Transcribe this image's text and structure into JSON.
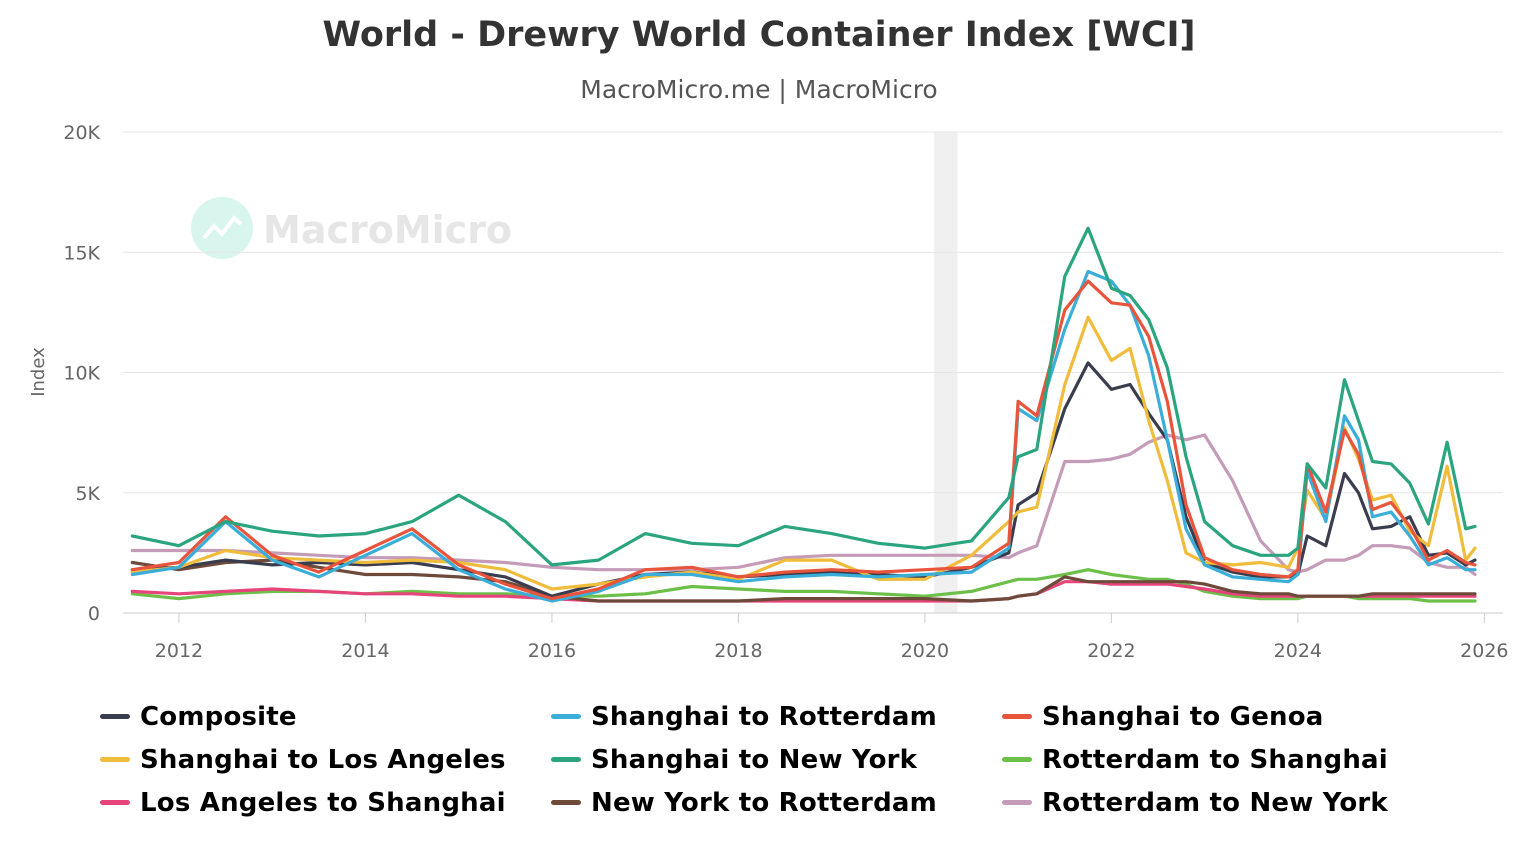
{
  "chart_data": {
    "type": "line",
    "title": "World - Drewry World Container Index [WCI]",
    "subtitle": "MacroMicro.me | MacroMicro",
    "watermark": "MacroMicro",
    "ylabel": "Index",
    "xlabel": "",
    "ylim": [
      0,
      20000
    ],
    "xlim": [
      2011.4,
      2026.2
    ],
    "yticks": [
      0,
      5000,
      10000,
      15000,
      20000
    ],
    "ytick_labels": [
      "0",
      "5K",
      "10K",
      "15K",
      "20K"
    ],
    "xticks": [
      2012,
      2014,
      2016,
      2018,
      2020,
      2022,
      2024,
      2026
    ],
    "xtick_labels": [
      "2012",
      "2014",
      "2016",
      "2018",
      "2020",
      "2022",
      "2024",
      "2026"
    ],
    "shaded_range": [
      2020.1,
      2020.35
    ],
    "grid": true,
    "legend_position": "bottom",
    "series": [
      {
        "name": "Composite",
        "color": "#3a3d4d",
        "x": [
          2011.5,
          2012.0,
          2012.5,
          2013.0,
          2013.5,
          2014.0,
          2014.5,
          2015.0,
          2015.5,
          2016.0,
          2016.5,
          2017.0,
          2017.5,
          2018.0,
          2018.5,
          2019.0,
          2019.5,
          2020.0,
          2020.5,
          2020.9,
          2021.0,
          2021.2,
          2021.5,
          2021.75,
          2022.0,
          2022.2,
          2022.4,
          2022.6,
          2022.8,
          2023.0,
          2023.3,
          2023.6,
          2023.9,
          2024.0,
          2024.1,
          2024.3,
          2024.5,
          2024.65,
          2024.8,
          2025.0,
          2025.2,
          2025.4,
          2025.6,
          2025.8,
          2025.9
        ],
        "values": [
          1800,
          1900,
          2200,
          2000,
          2100,
          2000,
          2100,
          1800,
          1500,
          700,
          1200,
          1600,
          1700,
          1500,
          1600,
          1700,
          1600,
          1500,
          1900,
          2500,
          4500,
          5000,
          8500,
          10400,
          9300,
          9500,
          8300,
          7200,
          4000,
          2100,
          1700,
          1500,
          1500,
          1600,
          3200,
          2800,
          5800,
          5000,
          3500,
          3600,
          4000,
          2400,
          2500,
          2000,
          2200
        ]
      },
      {
        "name": "Shanghai to Rotterdam",
        "color": "#3aaed8",
        "x": [
          2011.5,
          2012.0,
          2012.5,
          2013.0,
          2013.5,
          2014.0,
          2014.5,
          2015.0,
          2015.5,
          2016.0,
          2016.5,
          2017.0,
          2017.5,
          2018.0,
          2018.5,
          2019.0,
          2019.5,
          2020.0,
          2020.5,
          2020.9,
          2021.0,
          2021.2,
          2021.5,
          2021.75,
          2022.0,
          2022.2,
          2022.4,
          2022.6,
          2022.8,
          2023.0,
          2023.3,
          2023.6,
          2023.9,
          2024.0,
          2024.1,
          2024.3,
          2024.5,
          2024.65,
          2024.8,
          2025.0,
          2025.2,
          2025.4,
          2025.6,
          2025.8,
          2025.9
        ],
        "values": [
          1600,
          1900,
          3800,
          2200,
          1500,
          2400,
          3300,
          1800,
          1000,
          500,
          900,
          1600,
          1600,
          1300,
          1500,
          1600,
          1500,
          1600,
          1700,
          2700,
          8500,
          8000,
          11800,
          14200,
          13800,
          12800,
          10700,
          7200,
          3500,
          2000,
          1500,
          1400,
          1300,
          1600,
          5900,
          3800,
          8200,
          7200,
          4000,
          4200,
          3200,
          2000,
          2300,
          1800,
          1800
        ]
      },
      {
        "name": "Shanghai to Genoa",
        "color": "#e8543c",
        "x": [
          2011.5,
          2012.0,
          2012.5,
          2013.0,
          2013.5,
          2014.0,
          2014.5,
          2015.0,
          2015.5,
          2016.0,
          2016.5,
          2017.0,
          2017.5,
          2018.0,
          2018.5,
          2019.0,
          2019.5,
          2020.0,
          2020.5,
          2020.9,
          2021.0,
          2021.2,
          2021.5,
          2021.75,
          2022.0,
          2022.2,
          2022.4,
          2022.6,
          2022.8,
          2023.0,
          2023.3,
          2023.6,
          2023.9,
          2024.0,
          2024.1,
          2024.3,
          2024.5,
          2024.65,
          2024.8,
          2025.0,
          2025.2,
          2025.4,
          2025.6,
          2025.8,
          2025.9
        ],
        "values": [
          1800,
          2100,
          4000,
          2400,
          1700,
          2600,
          3500,
          2000,
          1200,
          600,
          1000,
          1800,
          1900,
          1500,
          1700,
          1800,
          1700,
          1800,
          1900,
          2900,
          8800,
          8200,
          12600,
          13800,
          12900,
          12800,
          11500,
          8800,
          4500,
          2300,
          1800,
          1600,
          1500,
          1800,
          6200,
          4200,
          7600,
          6600,
          4300,
          4600,
          3600,
          2200,
          2600,
          2100,
          2000
        ]
      },
      {
        "name": "Shanghai to Los Angeles",
        "color": "#f0bc3c",
        "x": [
          2011.5,
          2012.0,
          2012.5,
          2013.0,
          2013.5,
          2014.0,
          2014.5,
          2015.0,
          2015.5,
          2016.0,
          2016.5,
          2017.0,
          2017.5,
          2018.0,
          2018.5,
          2019.0,
          2019.5,
          2020.0,
          2020.5,
          2020.9,
          2021.0,
          2021.2,
          2021.5,
          2021.75,
          2022.0,
          2022.2,
          2022.4,
          2022.6,
          2022.8,
          2023.0,
          2023.3,
          2023.6,
          2023.9,
          2024.0,
          2024.1,
          2024.3,
          2024.5,
          2024.65,
          2024.8,
          2025.0,
          2025.2,
          2025.4,
          2025.6,
          2025.8,
          2025.9
        ],
        "values": [
          1700,
          1900,
          2600,
          2300,
          2200,
          2100,
          2200,
          2100,
          1800,
          1000,
          1200,
          1500,
          1700,
          1400,
          2200,
          2200,
          1400,
          1400,
          2400,
          3800,
          4200,
          4400,
          9500,
          12300,
          10500,
          11000,
          8000,
          5500,
          2500,
          2100,
          2000,
          2100,
          1900,
          2700,
          5100,
          3900,
          7700,
          6400,
          4700,
          4900,
          3400,
          2800,
          6100,
          2200,
          2700
        ]
      },
      {
        "name": "Shanghai to New York",
        "color": "#2aa57f",
        "x": [
          2011.5,
          2012.0,
          2012.5,
          2013.0,
          2013.5,
          2014.0,
          2014.5,
          2015.0,
          2015.5,
          2016.0,
          2016.5,
          2017.0,
          2017.5,
          2018.0,
          2018.5,
          2019.0,
          2019.5,
          2020.0,
          2020.5,
          2020.9,
          2021.0,
          2021.2,
          2021.5,
          2021.75,
          2022.0,
          2022.2,
          2022.4,
          2022.6,
          2022.8,
          2023.0,
          2023.3,
          2023.6,
          2023.9,
          2024.0,
          2024.1,
          2024.3,
          2024.5,
          2024.65,
          2024.8,
          2025.0,
          2025.2,
          2025.4,
          2025.6,
          2025.8,
          2025.9
        ],
        "values": [
          3200,
          2800,
          3800,
          3400,
          3200,
          3300,
          3800,
          4900,
          3800,
          2000,
          2200,
          3300,
          2900,
          2800,
          3600,
          3300,
          2900,
          2700,
          3000,
          4800,
          6500,
          6800,
          14000,
          16000,
          13500,
          13200,
          12200,
          10200,
          6500,
          3800,
          2800,
          2400,
          2400,
          2700,
          6200,
          5200,
          9700,
          8000,
          6300,
          6200,
          5400,
          3700,
          7100,
          3500,
          3600
        ]
      },
      {
        "name": "Rotterdam to Shanghai",
        "color": "#6cc04a",
        "x": [
          2011.5,
          2012.0,
          2012.5,
          2013.0,
          2013.5,
          2014.0,
          2014.5,
          2015.0,
          2015.5,
          2016.0,
          2016.5,
          2017.0,
          2017.5,
          2018.0,
          2018.5,
          2019.0,
          2019.5,
          2020.0,
          2020.5,
          2020.9,
          2021.0,
          2021.2,
          2021.5,
          2021.75,
          2022.0,
          2022.2,
          2022.4,
          2022.6,
          2022.8,
          2023.0,
          2023.3,
          2023.6,
          2023.9,
          2024.0,
          2024.1,
          2024.3,
          2024.5,
          2024.65,
          2024.8,
          2025.0,
          2025.2,
          2025.4,
          2025.6,
          2025.8,
          2025.9
        ],
        "values": [
          800,
          600,
          800,
          900,
          900,
          800,
          900,
          800,
          800,
          700,
          700,
          800,
          1100,
          1000,
          900,
          900,
          800,
          700,
          900,
          1300,
          1400,
          1400,
          1600,
          1800,
          1600,
          1500,
          1400,
          1400,
          1200,
          900,
          700,
          600,
          600,
          600,
          700,
          700,
          700,
          600,
          600,
          600,
          600,
          500,
          500,
          500,
          500
        ]
      },
      {
        "name": "Los Angeles to Shanghai",
        "color": "#e8447c",
        "x": [
          2011.5,
          2012.0,
          2012.5,
          2013.0,
          2013.5,
          2014.0,
          2014.5,
          2015.0,
          2015.5,
          2016.0,
          2016.5,
          2017.0,
          2017.5,
          2018.0,
          2018.5,
          2019.0,
          2019.5,
          2020.0,
          2020.5,
          2020.9,
          2021.0,
          2021.2,
          2021.5,
          2021.75,
          2022.0,
          2022.2,
          2022.4,
          2022.6,
          2022.8,
          2023.0,
          2023.3,
          2023.6,
          2023.9,
          2024.0,
          2024.1,
          2024.3,
          2024.5,
          2024.65,
          2024.8,
          2025.0,
          2025.2,
          2025.4,
          2025.6,
          2025.8,
          2025.9
        ],
        "values": [
          900,
          800,
          900,
          1000,
          900,
          800,
          800,
          700,
          700,
          600,
          500,
          500,
          500,
          500,
          500,
          500,
          500,
          500,
          500,
          600,
          700,
          800,
          1300,
          1300,
          1200,
          1200,
          1200,
          1200,
          1100,
          1000,
          800,
          700,
          700,
          700,
          700,
          700,
          700,
          700,
          700,
          700,
          700,
          700,
          700,
          700,
          700
        ]
      },
      {
        "name": "New York to Rotterdam",
        "color": "#6e4a3a",
        "x": [
          2011.5,
          2012.0,
          2012.5,
          2013.0,
          2013.5,
          2014.0,
          2014.5,
          2015.0,
          2015.5,
          2016.0,
          2016.5,
          2017.0,
          2017.5,
          2018.0,
          2018.5,
          2019.0,
          2019.5,
          2020.0,
          2020.5,
          2020.9,
          2021.0,
          2021.2,
          2021.5,
          2021.75,
          2022.0,
          2022.2,
          2022.4,
          2022.6,
          2022.8,
          2023.0,
          2023.3,
          2023.6,
          2023.9,
          2024.0,
          2024.1,
          2024.3,
          2024.5,
          2024.65,
          2024.8,
          2025.0,
          2025.2,
          2025.4,
          2025.6,
          2025.8,
          2025.9
        ],
        "values": [
          2100,
          1800,
          2100,
          2200,
          1900,
          1600,
          1600,
          1500,
          1300,
          700,
          500,
          500,
          500,
          500,
          600,
          600,
          600,
          600,
          500,
          600,
          700,
          800,
          1500,
          1300,
          1300,
          1300,
          1300,
          1300,
          1300,
          1200,
          900,
          800,
          800,
          700,
          700,
          700,
          700,
          700,
          800,
          800,
          800,
          800,
          800,
          800,
          800
        ]
      },
      {
        "name": "Rotterdam to New York",
        "color": "#c49cb8",
        "x": [
          2011.5,
          2012.0,
          2012.5,
          2013.0,
          2013.5,
          2014.0,
          2014.5,
          2015.0,
          2015.5,
          2016.0,
          2016.5,
          2017.0,
          2017.5,
          2018.0,
          2018.5,
          2019.0,
          2019.5,
          2020.0,
          2020.5,
          2020.9,
          2021.0,
          2021.2,
          2021.5,
          2021.75,
          2022.0,
          2022.2,
          2022.4,
          2022.6,
          2022.8,
          2023.0,
          2023.3,
          2023.6,
          2023.9,
          2024.0,
          2024.1,
          2024.3,
          2024.5,
          2024.65,
          2024.8,
          2025.0,
          2025.2,
          2025.4,
          2025.6,
          2025.8,
          2025.9
        ],
        "values": [
          2600,
          2600,
          2600,
          2500,
          2400,
          2300,
          2300,
          2200,
          2100,
          1900,
          1800,
          1800,
          1800,
          1900,
          2300,
          2400,
          2400,
          2400,
          2400,
          2300,
          2500,
          2800,
          6300,
          6300,
          6400,
          6600,
          7100,
          7400,
          7200,
          7400,
          5500,
          3000,
          1800,
          1700,
          1800,
          2200,
          2200,
          2400,
          2800,
          2800,
          2700,
          2100,
          1900,
          1900,
          1600
        ]
      }
    ]
  }
}
